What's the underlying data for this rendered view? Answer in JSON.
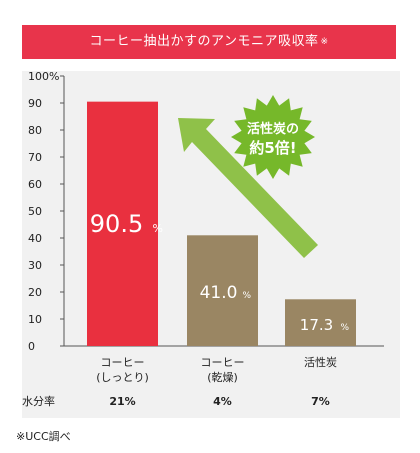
{
  "title": "コーヒー抽出かすのアンモニア吸収率",
  "title_mark": "※",
  "badge_text": [
    "活性炭の",
    "約5倍!"
  ],
  "footnote": "※UCC調べ",
  "moisture_label": "水分率",
  "colors": {
    "title_bg": "#e8344b",
    "bar_red": "#e9303f",
    "bar_brown": "#9a8663",
    "badge": "#76b82a",
    "arrow": "#8fc149"
  },
  "chart_data": {
    "type": "bar",
    "categories": [
      "コーヒー\n(しっとり)",
      "コーヒー\n(乾燥)",
      "活性炭"
    ],
    "values": [
      90.5,
      41.0,
      17.3
    ],
    "value_labels": [
      "90.5",
      "41.0",
      "17.3"
    ],
    "value_unit": "%",
    "ylim": [
      0,
      100
    ],
    "yticks": [
      "0",
      "10",
      "20",
      "30",
      "40",
      "50",
      "60",
      "70",
      "80",
      "90",
      "100%"
    ],
    "moisture": [
      "21%",
      "4%",
      "7%"
    ],
    "grid": false
  }
}
